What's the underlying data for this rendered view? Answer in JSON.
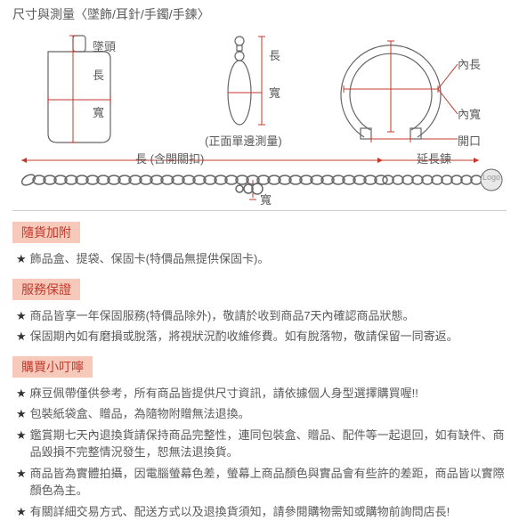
{
  "colors": {
    "header_bg": "#f7c9bb",
    "header_text": "#c0392b",
    "body_text": "#5a5a5a",
    "star": "#333333",
    "diagram_line": "#666666",
    "arrow_red": "#c0392b",
    "divider": "#cccccc"
  },
  "fonts": {
    "body_size": 13,
    "header_size": 14
  },
  "title": "尺寸與測量〈墜飾/耳針/手鐲/手鍊〉",
  "diagram_top": {
    "pendant": {
      "labels": {
        "head": "墜頭",
        "length": "長",
        "width": "寬"
      }
    },
    "earring": {
      "labels": {
        "length": "長",
        "width": "寬",
        "note": "(正面單邊測量)"
      }
    },
    "bracelet": {
      "labels": {
        "inner_length": "內長",
        "inner_width": "內寬",
        "opening": "開口"
      }
    }
  },
  "diagram_bottom": {
    "labels": {
      "length": "長 (含開關扣)",
      "width": "寬",
      "extension": "延長鍊",
      "logo": "Logo"
    }
  },
  "sections": {
    "included": {
      "header": "隨貨加附",
      "items": [
        "飾品盒、提袋、保固卡(特價品無提供保固卡)。"
      ]
    },
    "warranty": {
      "header": "服務保證",
      "items": [
        "商品皆享一年保固服務(特價品除外)，敬請於收到商品7天內確認商品狀態。",
        "保固期內如有磨損或脫落，將視狀況酌收維修費。如有脫落物，敬請保留一同寄返。"
      ]
    },
    "notes": {
      "header": "購買小叮嚀",
      "items": [
        "麻豆佩帶僅供參考，所有商品皆提供尺寸資訊，請依據個人身型選擇購買喔!!",
        "包裝紙袋盒、贈品，為隨物附贈無法退換。",
        "鑑賞期七天內退換貨請保持商品完整性，連同包裝盒、贈品、配件等一起退回，如有缺件、商品毀損不完整情況發生，恕無法退換貨。",
        "商品皆為實體拍攝，因電腦螢幕色差，螢幕上商品顏色與實品會有些許的差距，商品皆以實際顏色為主。",
        "有關詳細交易方式、配送方式以及退換貨須知，請參閱購物需知或購物前詢問店長!"
      ]
    }
  }
}
